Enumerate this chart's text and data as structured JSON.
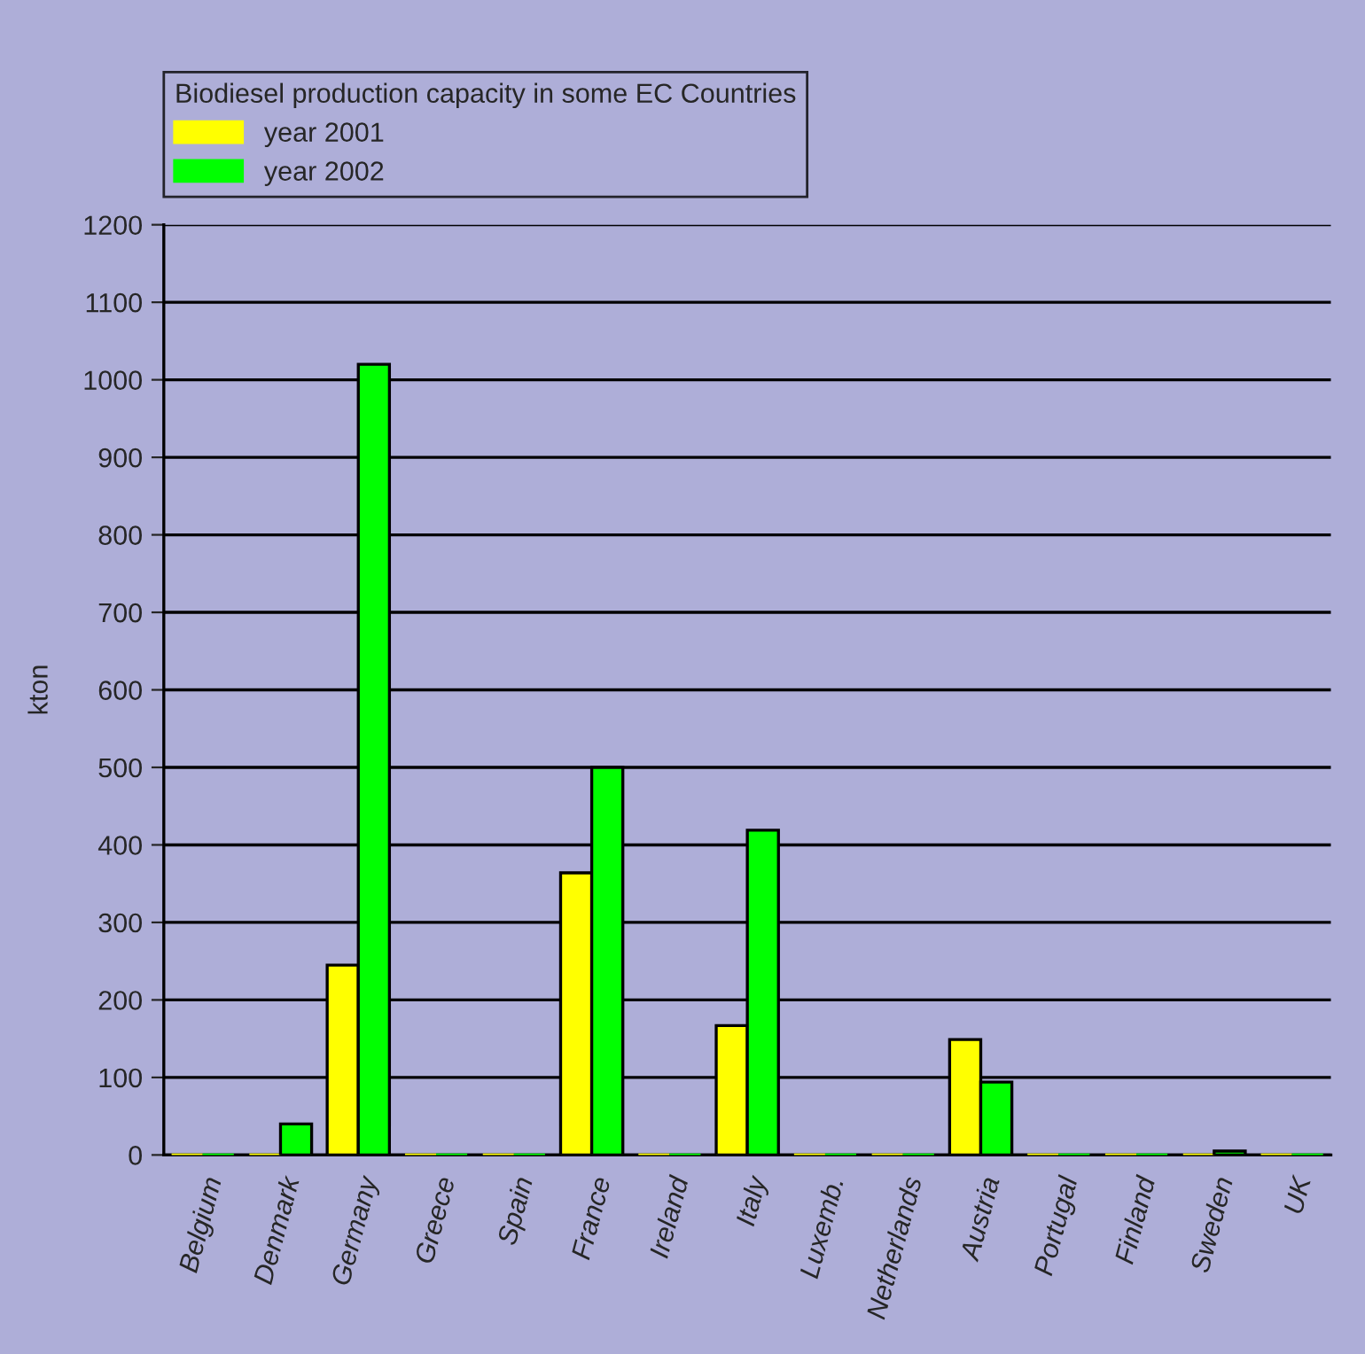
{
  "chart_data": {
    "type": "bar",
    "legend_title": "Biodiesel production capacity in some EC Countries",
    "ylabel": "kton",
    "categories": [
      "Belgium",
      "Denmark",
      "Germany",
      "Greece",
      "Spain",
      "France",
      "Ireland",
      "Italy",
      "Luxemb.",
      "Netherlands",
      "Austria",
      "Portugal",
      "Finland",
      "Sweden",
      "UK"
    ],
    "series": [
      {
        "name": "year 2001",
        "color": "#ffff00",
        "values": [
          0,
          0,
          245,
          0,
          0,
          364,
          0,
          167,
          0,
          0,
          149,
          0,
          0,
          0,
          0
        ]
      },
      {
        "name": "year 2002",
        "color": "#00ff00",
        "values": [
          0,
          40,
          1020,
          0,
          0,
          500,
          0,
          419,
          0,
          0,
          94,
          0,
          0,
          5,
          0
        ]
      }
    ],
    "ylim": [
      0,
      1200
    ],
    "yticks": [
      0,
      100,
      200,
      300,
      400,
      500,
      600,
      700,
      800,
      900,
      1000,
      1100,
      1200
    ],
    "grid": "y",
    "legend": "top"
  }
}
